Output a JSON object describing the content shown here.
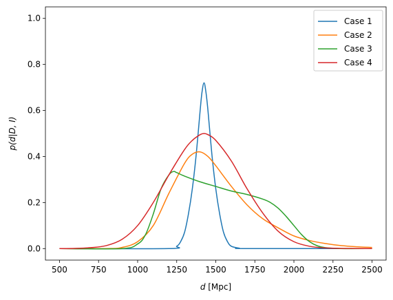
{
  "chart_data": {
    "type": "line",
    "title": "",
    "xlabel_italic": "d",
    "xlabel_rest": " [Mpc]",
    "ylabel": "p(d|D, I)",
    "xlim": [
      410,
      2590
    ],
    "ylim": [
      -0.05,
      1.05
    ],
    "xticks": [
      500,
      750,
      1000,
      1250,
      1500,
      1750,
      2000,
      2250,
      2500
    ],
    "yticks": [
      0.0,
      0.2,
      0.4,
      0.6,
      0.8,
      1.0
    ],
    "ytick_labels": [
      "0.0",
      "0.2",
      "0.4",
      "0.6",
      "0.8",
      "1.0"
    ],
    "grid": false,
    "legend_position": "top-right",
    "series": [
      {
        "name": "Case 1",
        "color": "#1f77b4",
        "x": [
          500,
          1200,
          1250,
          1275,
          1300,
          1325,
          1350,
          1375,
          1400,
          1412,
          1425,
          1437,
          1450,
          1475,
          1500,
          1525,
          1550,
          1575,
          1600,
          1650,
          1700,
          2500
        ],
        "y": [
          0.0,
          0.0,
          0.01,
          0.03,
          0.07,
          0.15,
          0.26,
          0.41,
          0.6,
          0.68,
          0.72,
          0.68,
          0.6,
          0.41,
          0.26,
          0.15,
          0.07,
          0.03,
          0.01,
          0.002,
          0.0,
          0.0
        ]
      },
      {
        "name": "Case 2",
        "color": "#ff7f0e",
        "x": [
          500,
          800,
          900,
          1000,
          1100,
          1200,
          1300,
          1350,
          1400,
          1450,
          1500,
          1600,
          1700,
          1800,
          1900,
          2000,
          2100,
          2200,
          2300,
          2400,
          2500
        ],
        "y": [
          0.0,
          0.0,
          0.005,
          0.03,
          0.1,
          0.24,
          0.37,
          0.41,
          0.42,
          0.4,
          0.36,
          0.27,
          0.19,
          0.13,
          0.09,
          0.055,
          0.035,
          0.022,
          0.013,
          0.008,
          0.005
        ]
      },
      {
        "name": "Case 3",
        "color": "#2ca02c",
        "x": [
          500,
          900,
          1000,
          1050,
          1100,
          1150,
          1200,
          1230,
          1250,
          1300,
          1400,
          1500,
          1600,
          1700,
          1800,
          1850,
          1900,
          1950,
          2000,
          2050,
          2100,
          2150,
          2200,
          2300,
          2500
        ],
        "y": [
          0.0,
          0.0,
          0.02,
          0.06,
          0.15,
          0.26,
          0.32,
          0.335,
          0.33,
          0.315,
          0.29,
          0.27,
          0.25,
          0.235,
          0.215,
          0.2,
          0.175,
          0.14,
          0.1,
          0.06,
          0.03,
          0.012,
          0.004,
          0.0,
          0.0
        ]
      },
      {
        "name": "Case 4",
        "color": "#d62728",
        "x": [
          500,
          600,
          700,
          800,
          900,
          1000,
          1100,
          1200,
          1300,
          1350,
          1400,
          1425,
          1450,
          1500,
          1600,
          1700,
          1800,
          1900,
          2000,
          2100,
          2200,
          2300,
          2500
        ],
        "y": [
          0.0,
          0.001,
          0.004,
          0.013,
          0.04,
          0.1,
          0.2,
          0.32,
          0.43,
          0.47,
          0.495,
          0.5,
          0.495,
          0.47,
          0.38,
          0.26,
          0.155,
          0.075,
          0.03,
          0.01,
          0.003,
          0.001,
          0.0
        ]
      }
    ]
  }
}
